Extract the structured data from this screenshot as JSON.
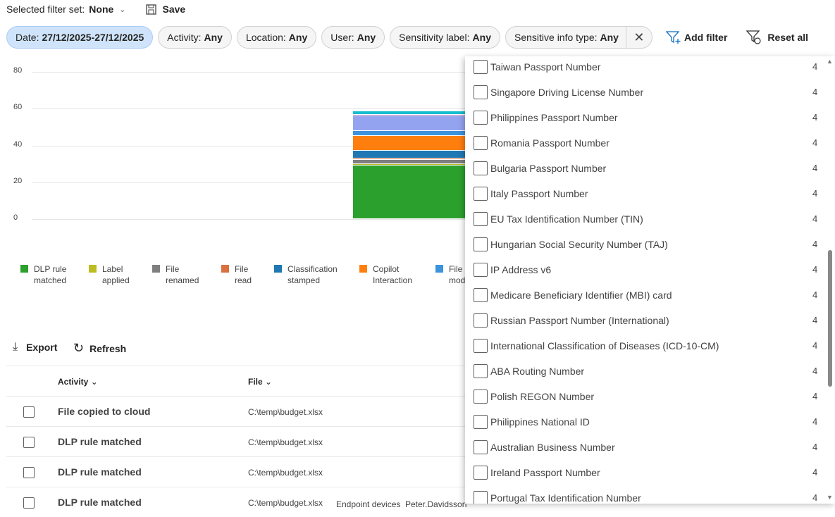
{
  "header": {
    "filter_set_label": "Selected filter set:",
    "filter_set_value": "None",
    "save_label": "Save"
  },
  "filters": [
    {
      "key": "Date:",
      "value": "27/12/2025-27/12/2025"
    },
    {
      "key": "Activity:",
      "value": "Any"
    },
    {
      "key": "Location:",
      "value": "Any"
    },
    {
      "key": "User:",
      "value": "Any"
    },
    {
      "key": "Sensitivity label:",
      "value": "Any"
    },
    {
      "key": "Sensitive info type:",
      "value": "Any"
    }
  ],
  "add_filter_label": "Add filter",
  "reset_all_label": "Reset all",
  "chart_data": {
    "type": "bar",
    "stacked": true,
    "ylim": [
      0,
      80
    ],
    "yticks": [
      "80",
      "60",
      "40",
      "20",
      "0"
    ],
    "series": [
      {
        "name": "DLP rule matched",
        "value": 29,
        "color": "#2ca02c"
      },
      {
        "name": "Label applied",
        "value": 1,
        "color": "#bcbd22"
      },
      {
        "name": "File renamed",
        "value": 2,
        "color": "#7f7f7f"
      },
      {
        "name": "File read",
        "value": 1,
        "color": "#d9703f"
      },
      {
        "name": "Classification stamped",
        "value": 4,
        "color": "#1f77b4"
      },
      {
        "name": "Copilot Interaction",
        "value": 8,
        "color": "#ff7f0e"
      },
      {
        "name": "File mod",
        "value": 3,
        "color": "#3b93dc"
      },
      {
        "name": "",
        "value": 8,
        "color": "#94a3f0"
      },
      {
        "name": "",
        "value": 0.5,
        "color": "#9467bd"
      },
      {
        "name": "",
        "value": 2,
        "color": "#17becf"
      }
    ],
    "legend": [
      [
        "DLP rule",
        "matched"
      ],
      [
        "Label",
        "applied"
      ],
      [
        "File",
        "renamed"
      ],
      [
        "File",
        "read"
      ],
      [
        "Classification",
        "stamped"
      ],
      [
        "Copilot",
        "Interaction"
      ],
      [
        "File",
        "mod"
      ]
    ]
  },
  "toolbar": {
    "export_label": "Export",
    "refresh_label": "Refresh"
  },
  "table": {
    "headers": {
      "activity": "Activity",
      "file": "File"
    },
    "rows": [
      {
        "activity": "File copied to cloud",
        "file": "C:\\temp\\budget.xlsx"
      },
      {
        "activity": "DLP rule matched",
        "file": "C:\\temp\\budget.xlsx"
      },
      {
        "activity": "DLP rule matched",
        "file": "C:\\temp\\budget.xlsx"
      },
      {
        "activity": "DLP rule matched",
        "file": "C:\\temp\\budget.xlsx",
        "location": "Endpoint devices",
        "user": "Peter.Davidsson"
      }
    ]
  },
  "dropdown": {
    "options": [
      {
        "label": "Taiwan Passport Number",
        "count": "4"
      },
      {
        "label": "Singapore Driving License Number",
        "count": "4"
      },
      {
        "label": "Philippines Passport Number",
        "count": "4"
      },
      {
        "label": "Romania Passport Number",
        "count": "4"
      },
      {
        "label": "Bulgaria Passport Number",
        "count": "4"
      },
      {
        "label": "Italy Passport Number",
        "count": "4"
      },
      {
        "label": "EU Tax Identification Number (TIN)",
        "count": "4"
      },
      {
        "label": "Hungarian Social Security Number (TAJ)",
        "count": "4"
      },
      {
        "label": "IP Address v6",
        "count": "4"
      },
      {
        "label": "Medicare Beneficiary Identifier (MBI) card",
        "count": "4"
      },
      {
        "label": "Russian Passport Number (International)",
        "count": "4"
      },
      {
        "label": "International Classification of Diseases (ICD-10-CM)",
        "count": "4"
      },
      {
        "label": "ABA Routing Number",
        "count": "4"
      },
      {
        "label": "Polish REGON Number",
        "count": "4"
      },
      {
        "label": "Philippines National ID",
        "count": "4"
      },
      {
        "label": "Australian Business Number",
        "count": "4"
      },
      {
        "label": "Ireland Passport Number",
        "count": "4"
      },
      {
        "label": "Portugal Tax Identification Number",
        "count": "4"
      }
    ]
  }
}
